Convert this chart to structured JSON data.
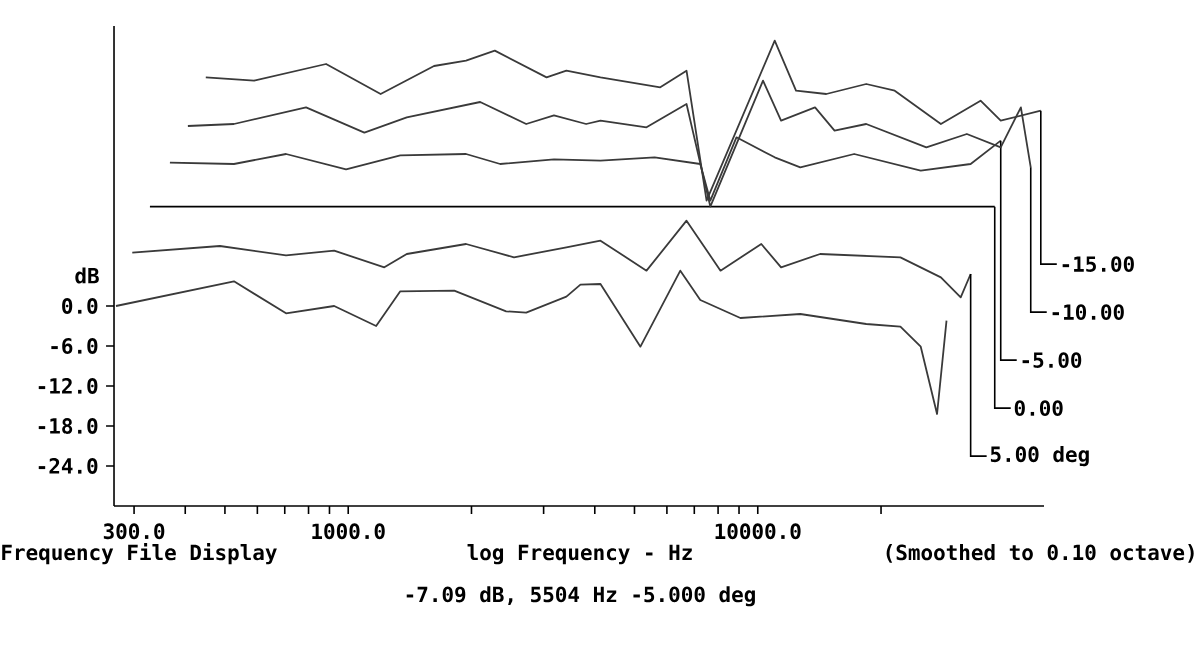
{
  "chart_data": {
    "type": "line",
    "xlabel": "log Frequency - Hz",
    "ylabel": "dB",
    "annotations": [
      "Frequency File Display",
      "(Smoothed to 0.10 octave)",
      "-7.09 dB, 5504 Hz  -5.000 deg"
    ],
    "log": "x",
    "grid": false,
    "marker": "none",
    "line_style": "solid",
    "xlim": [
      268,
      50000
    ],
    "ylim": [
      -30,
      42
    ],
    "xticks": [
      {
        "value": 300,
        "label": "300.0"
      },
      {
        "value": 400,
        "label": null
      },
      {
        "value": 500,
        "label": null
      },
      {
        "value": 600,
        "label": null
      },
      {
        "value": 700,
        "label": null
      },
      {
        "value": 800,
        "label": null
      },
      {
        "value": 900,
        "label": null
      },
      {
        "value": 1000,
        "label": "1000.0"
      },
      {
        "value": 2000,
        "label": null
      },
      {
        "value": 3000,
        "label": null
      },
      {
        "value": 4000,
        "label": null
      },
      {
        "value": 5000,
        "label": null
      },
      {
        "value": 6000,
        "label": null
      },
      {
        "value": 7000,
        "label": null
      },
      {
        "value": 8000,
        "label": null
      },
      {
        "value": 9000,
        "label": null
      },
      {
        "value": 10000,
        "label": "10000.0"
      },
      {
        "value": 20000,
        "label": null
      }
    ],
    "yticks": [
      {
        "value": 0,
        "label": "0.0"
      },
      {
        "value": -6,
        "label": "-6.0"
      },
      {
        "value": -12,
        "label": "-12.0"
      },
      {
        "value": -18,
        "label": "-18.0"
      },
      {
        "value": -24,
        "label": "-24.0"
      }
    ],
    "series": [
      {
        "color": "#3a3a3a",
        "x": [
          271,
          526,
          705,
          924,
          1170,
          1340,
          1815,
          2430,
          2720,
          3410,
          3690,
          4130,
          5170,
          6470,
          7240,
          9070,
          12700,
          18400,
          22300,
          25000,
          27400,
          28900
        ],
        "values": [
          0,
          3.7,
          -1.1,
          0,
          -3,
          2.2,
          2.3,
          -0.8,
          -1,
          1.4,
          3.2,
          3.3,
          -6.1,
          5.3,
          0.9,
          -1.8,
          -1.2,
          -2.7,
          -3.1,
          -6.1,
          -16.2,
          -2.2
        ]
      },
      {
        "name": "5.00 deg",
        "color": "#3a3a3a",
        "x": [
          297,
          486,
          705,
          924,
          1225,
          1390,
          1940,
          2540,
          3410,
          4130,
          5350,
          6700,
          8110,
          10200,
          11400,
          14200,
          22300,
          28000,
          31300,
          33100
        ],
        "values": [
          8.0,
          9.0,
          7.6,
          8.3,
          5.8,
          7.8,
          9.3,
          7.3,
          8.8,
          9.8,
          5.3,
          12.8,
          5.3,
          9.3,
          5.8,
          7.8,
          7.3,
          4.3,
          1.3,
          4.8
        ]
      },
      {
        "name": "0.00",
        "color": "#000000",
        "x": [
          328,
          37900
        ],
        "values": [
          14.9,
          14.9
        ]
      },
      {
        "name": "-5.00",
        "color": "#3a3a3a",
        "x": [
          367,
          526,
          705,
          988,
          1340,
          1940,
          2350,
          3180,
          4130,
          5600,
          7240,
          7660,
          8870,
          11000,
          12700,
          17200,
          25000,
          33100,
          39200
        ],
        "values": [
          21.5,
          21.3,
          22.8,
          20.5,
          22.6,
          22.8,
          21.3,
          22,
          21.8,
          22.3,
          21.3,
          15.8,
          25.3,
          22.3,
          20.8,
          22.8,
          20.3,
          21.3,
          24.8
        ]
      },
      {
        "name": "-10.00",
        "color": "#3a3a3a",
        "x": [
          406,
          526,
          789,
          1095,
          1390,
          2100,
          2720,
          3180,
          3810,
          4130,
          5350,
          6700,
          7660,
          10300,
          11400,
          13800,
          15400,
          18400,
          25800,
          32400,
          39200,
          43900,
          46400
        ],
        "values": [
          27,
          27.3,
          29.8,
          26,
          28.3,
          30.6,
          27.3,
          28.6,
          27.3,
          27.8,
          26.8,
          30.3,
          14.9,
          33.8,
          27.8,
          29.8,
          26.3,
          27.3,
          23.8,
          25.8,
          23.8,
          29.8,
          20.8
        ]
      },
      {
        "name": "-15.00",
        "color": "#3a3a3a",
        "x": [
          449,
          589,
          883,
          1200,
          1620,
          1940,
          2280,
          3050,
          3410,
          4130,
          5780,
          6700,
          7500,
          11000,
          12400,
          14700,
          18400,
          21600,
          28000,
          35000,
          39200,
          49100
        ],
        "values": [
          34.3,
          33.8,
          36.3,
          31.8,
          36,
          36.8,
          38.3,
          34.3,
          35.3,
          34.3,
          32.8,
          35.3,
          15.8,
          39.8,
          32.3,
          31.8,
          33.3,
          32.3,
          27.3,
          30.8,
          27.8,
          29.3
        ]
      }
    ]
  }
}
